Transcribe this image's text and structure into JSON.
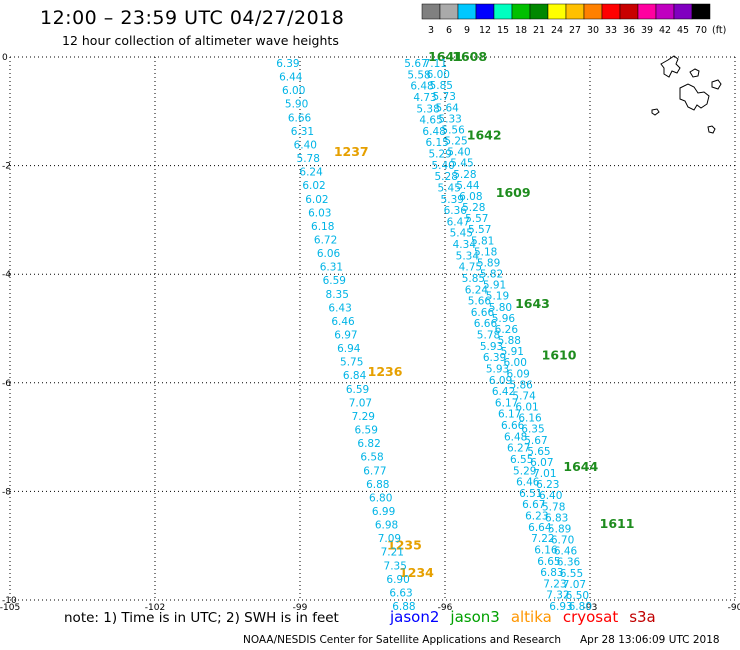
{
  "header": {
    "title": "12:00 – 23:59 UTC 04/27/2018",
    "subtitle": "12 hour collection of altimeter wave heights"
  },
  "colorbar": {
    "unit_label": "(ft)",
    "bins": [
      {
        "label": "3",
        "color": "#808080"
      },
      {
        "label": "6",
        "color": "#aaaaaa"
      },
      {
        "label": "9",
        "color": "#00c8ff"
      },
      {
        "label": "12",
        "color": "#0000ff"
      },
      {
        "label": "15",
        "color": "#00ffc0"
      },
      {
        "label": "18",
        "color": "#00c000"
      },
      {
        "label": "21",
        "color": "#008800"
      },
      {
        "label": "24",
        "color": "#ffff00"
      },
      {
        "label": "27",
        "color": "#ffc000"
      },
      {
        "label": "30",
        "color": "#ff8000"
      },
      {
        "label": "33",
        "color": "#ff0000"
      },
      {
        "label": "36",
        "color": "#c80000"
      },
      {
        "label": "39",
        "color": "#ff00a0"
      },
      {
        "label": "42",
        "color": "#c000c0"
      },
      {
        "label": "45",
        "color": "#8000c0"
      },
      {
        "label": "70",
        "color": "#000000"
      }
    ]
  },
  "map": {
    "lon_range": [
      -105,
      -90
    ],
    "lat_range": [
      -10,
      0
    ],
    "x_ticks": [
      "-105",
      "-102",
      "-99",
      "-96",
      "-93",
      "-90"
    ],
    "y_ticks": [
      "0",
      "-2",
      "-4",
      "-6",
      "-8",
      "-10"
    ],
    "tracks": [
      {
        "name": "track-a",
        "color": "#00b4e6",
        "start": [
          -99.25,
          0.0
        ],
        "end": [
          -96.85,
          -10.0
        ],
        "values": [
          "6.39",
          "6.44",
          "6.00",
          "5.90",
          "6.66",
          "6.31",
          "6.40",
          "5.78",
          "6.24",
          "6.02",
          "6.02",
          "6.03",
          "6.18",
          "6.72",
          "6.06",
          "6.31",
          "6.59",
          "8.35",
          "6.43",
          "6.46",
          "6.97",
          "6.94",
          "5.75",
          "6.84",
          "6.59",
          "7.07",
          "7.29",
          "6.59",
          "6.82",
          "6.58",
          "6.77",
          "6.88",
          "6.80",
          "6.99",
          "6.98",
          "7.09",
          "7.21",
          "7.35",
          "6.90",
          "6.63",
          "6.88"
        ]
      },
      {
        "name": "track-b",
        "color": "#00b4e6",
        "start": [
          -96.6,
          0.0
        ],
        "end": [
          -93.6,
          -10.0
        ],
        "values": [
          "5.67",
          "5.58",
          "6.48",
          "4.73",
          "5.38",
          "4.65",
          "6.48",
          "6.15",
          "5.29",
          "5.40",
          "5.28",
          "5.45",
          "5.39",
          "6.36",
          "6.47",
          "5.45",
          "4.34",
          "5.34",
          "4.75",
          "5.85",
          "6.24",
          "5.66",
          "6.66",
          "6.66",
          "5.78",
          "5.93",
          "6.39",
          "5.93",
          "6.09",
          "6.42",
          "6.17",
          "6.17",
          "6.66",
          "6.48",
          "6.27",
          "6.55",
          "5.29",
          "6.46",
          "6.51",
          "6.67",
          "6.23",
          "6.64",
          "7.22",
          "6.16",
          "6.65",
          "6.83",
          "7.23",
          "7.32",
          "6.93"
        ]
      },
      {
        "name": "track-c",
        "color": "#00b4e6",
        "start": [
          -96.2,
          0.0
        ],
        "end": [
          -93.2,
          -10.0
        ],
        "values": [
          "7.11",
          "6.00",
          "5.85",
          "5.73",
          "5.64",
          "5.33",
          "5.56",
          "5.25",
          "5.40",
          "5.45",
          "5.28",
          "5.44",
          "6.08",
          "5.28",
          "5.57",
          "5.57",
          "5.81",
          "5.18",
          "5.89",
          "5.82",
          "5.91",
          "5.19",
          "5.80",
          "5.96",
          "6.26",
          "5.88",
          "5.91",
          "6.00",
          "6.09",
          "5.86",
          "5.74",
          "6.01",
          "6.16",
          "6.35",
          "5.67",
          "5.65",
          "6.07",
          "7.01",
          "6.23",
          "6.40",
          "5.78",
          "6.83",
          "5.89",
          "6.70",
          "6.46",
          "6.36",
          "6.55",
          "7.07",
          "6.50",
          "6.80"
        ]
      }
    ],
    "time_labels": [
      {
        "label": "1237",
        "lon": -98.3,
        "lat": -1.75,
        "color": "#e6a000"
      },
      {
        "label": "1236",
        "lon": -97.6,
        "lat": -5.8,
        "color": "#e6a000"
      },
      {
        "label": "1235",
        "lon": -97.2,
        "lat": -9.0,
        "color": "#e6a000"
      },
      {
        "label": "1234",
        "lon": -96.95,
        "lat": -9.5,
        "color": "#e6a000"
      },
      {
        "label": "1641",
        "lon": -96.35,
        "lat": 0.0,
        "color": "#1e8c1e"
      },
      {
        "label": "1608",
        "lon": -95.85,
        "lat": 0.0,
        "color": "#1e8c1e"
      },
      {
        "label": "1642",
        "lon": -95.55,
        "lat": -1.45,
        "color": "#1e8c1e"
      },
      {
        "label": "1609",
        "lon": -94.95,
        "lat": -2.5,
        "color": "#1e8c1e"
      },
      {
        "label": "1643",
        "lon": -94.55,
        "lat": -4.55,
        "color": "#1e8c1e"
      },
      {
        "label": "1610",
        "lon": -94.0,
        "lat": -5.5,
        "color": "#1e8c1e"
      },
      {
        "label": "1644",
        "lon": -93.55,
        "lat": -7.55,
        "color": "#1e8c1e"
      },
      {
        "label": "1611",
        "lon": -92.8,
        "lat": -8.6,
        "color": "#1e8c1e"
      }
    ]
  },
  "footer": {
    "note": "note:  1) Time is in UTC;  2) SWH is in feet",
    "satellites": [
      {
        "name": "jason2",
        "color": "#0000ff"
      },
      {
        "name": "jason3",
        "color": "#00a000"
      },
      {
        "name": "altika",
        "color": "#ff9600"
      },
      {
        "name": "cryosat",
        "color": "#ff0000"
      },
      {
        "name": "s3a",
        "color": "#c00000"
      }
    ],
    "credit": "NOAA/NESDIS Center for Satellite Applications and Research",
    "timestamp": "Apr 28 13:06:09 UTC 2018"
  }
}
